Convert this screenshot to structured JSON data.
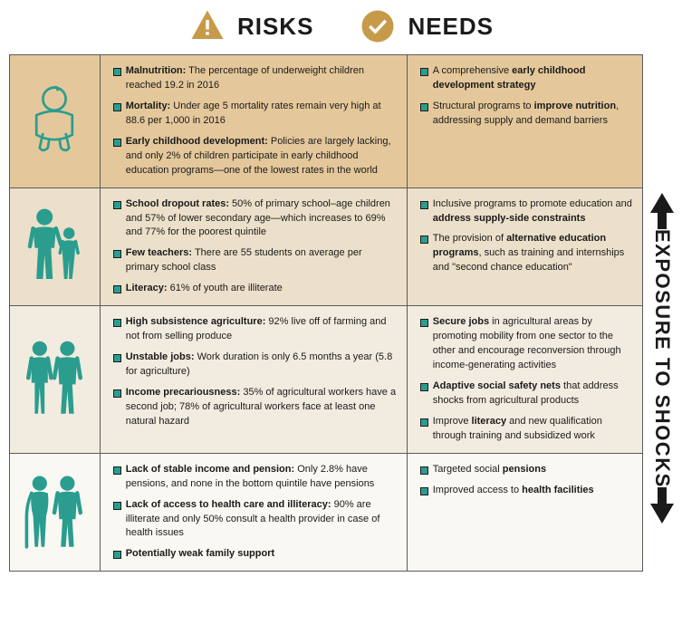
{
  "header": {
    "risks_label": "RISKS",
    "needs_label": "NEEDS"
  },
  "colors": {
    "accent_gold": "#c79a4a",
    "icon_teal": "#2a9d8f",
    "row_bg": [
      "#e4c89b",
      "#ece0ca",
      "#f2ece0",
      "#faf8f3"
    ],
    "border": "#5a5a5a",
    "text": "#1a1a1a"
  },
  "side_label": "EXPOSURE TO SHOCKS",
  "rows": [
    {
      "icon": "baby",
      "risks": [
        {
          "lead": "Malnutrition:",
          "text": " The percentage of underweight children reached 19.2 in 2016"
        },
        {
          "lead": "Mortality:",
          "text": " Under age 5 mortality rates remain very high at 88.6 per 1,000 in 2016"
        },
        {
          "lead": "Early childhood development:",
          "text": " Policies are largely lacking, and only 2% of children participate in early childhood education programs—one of the lowest rates in the world"
        }
      ],
      "needs": [
        {
          "html": "A comprehensive <b>early childhood development strategy</b>"
        },
        {
          "html": "Structural programs to <b>improve nutrition</b>, addressing supply and demand barriers"
        }
      ]
    },
    {
      "icon": "mother-child",
      "risks": [
        {
          "lead": "School dropout rates:",
          "text": " 50% of primary school–age children and 57% of lower secondary age—which increases to 69% and 77% for the poorest quintile"
        },
        {
          "lead": "Few teachers:",
          "text": " There are 55 students on average per primary school class"
        },
        {
          "lead": "Literacy:",
          "text": " 61% of youth are illiterate"
        }
      ],
      "needs": [
        {
          "html": "Inclusive programs to promote education and <b>address supply-side constraints</b>"
        },
        {
          "html": "The provision of <b>alternative education programs</b>, such as training and internships and \"second chance education\""
        }
      ]
    },
    {
      "icon": "adults",
      "risks": [
        {
          "lead": "High subsistence agriculture:",
          "text": " 92% live off of farming and not from selling produce"
        },
        {
          "lead": "Unstable jobs:",
          "text": " Work duration is only 6.5 months a year (5.8 for agriculture)"
        },
        {
          "lead": "Income precariousness:",
          "text": " 35% of agricultural workers have a second job; 78% of agricultural workers face at least one natural hazard"
        }
      ],
      "needs": [
        {
          "html": "<b>Secure jobs</b> in agricultural areas by promoting mobility from one sector to the other and encourage reconversion through income-generating activities"
        },
        {
          "html": "<b>Adaptive social safety nets</b> that address shocks from agricultural products"
        },
        {
          "html": "Improve <b>literacy</b> and new qualification through training and subsidized work"
        }
      ]
    },
    {
      "icon": "elderly",
      "risks": [
        {
          "lead": "Lack of stable income and pension:",
          "text": " Only 2.8% have pensions, and none in the bottom quintile have pensions"
        },
        {
          "lead": "Lack of access to health care and illiteracy:",
          "text": " 90% are illiterate and only 50% consult a health provider in case of health issues"
        },
        {
          "lead": "Potentially weak family support",
          "text": ""
        }
      ],
      "needs": [
        {
          "html": "Targeted social <b>pensions</b>"
        },
        {
          "html": "Improved access to <b>health facilities</b>"
        }
      ]
    }
  ]
}
